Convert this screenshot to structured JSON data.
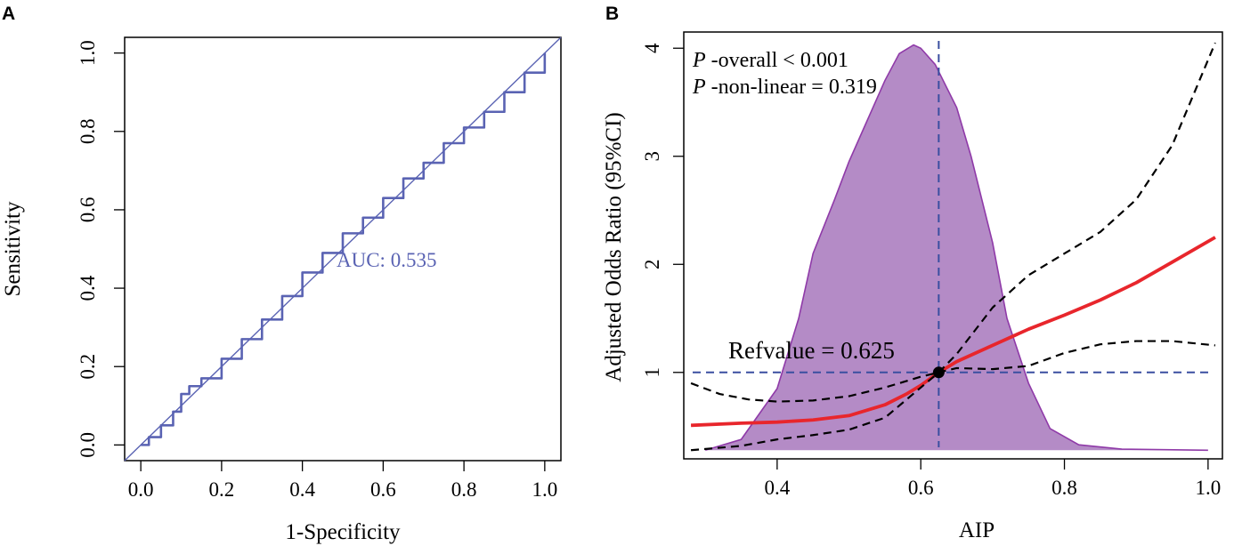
{
  "chart_data": [
    {
      "panel_label": "A",
      "type": "line",
      "xlabel": "1-Specificity",
      "ylabel": "Sensitivity",
      "xlim": [
        -0.04,
        1.04
      ],
      "ylim": [
        -0.04,
        1.04
      ],
      "xticks": [
        "0.0",
        "0.2",
        "0.4",
        "0.6",
        "0.8",
        "1.0"
      ],
      "yticks": [
        "0.0",
        "0.2",
        "0.4",
        "0.6",
        "0.8",
        "1.0"
      ],
      "annotation": "AUC: 0.535",
      "series": [
        {
          "name": "ROC",
          "x": [
            0.0,
            0.02,
            0.05,
            0.08,
            0.1,
            0.12,
            0.15,
            0.2,
            0.25,
            0.3,
            0.35,
            0.4,
            0.45,
            0.5,
            0.55,
            0.6,
            0.65,
            0.7,
            0.75,
            0.8,
            0.85,
            0.9,
            0.95,
            1.0
          ],
          "y": [
            0.0,
            0.02,
            0.05,
            0.085,
            0.13,
            0.15,
            0.17,
            0.22,
            0.27,
            0.32,
            0.38,
            0.44,
            0.49,
            0.54,
            0.58,
            0.63,
            0.68,
            0.72,
            0.77,
            0.81,
            0.85,
            0.9,
            0.95,
            1.0
          ]
        },
        {
          "name": "Reference",
          "x": [
            -0.04,
            1.04
          ],
          "y": [
            -0.04,
            1.04
          ]
        }
      ]
    },
    {
      "panel_label": "B",
      "type": "line",
      "xlabel": "AIP",
      "ylabel": "Adjusted Odds Ratio (95%CI)",
      "xlim": [
        0.27,
        1.02
      ],
      "ylim": [
        0.2,
        4.15
      ],
      "xticks": [
        "0.4",
        "0.6",
        "0.8",
        "1.0"
      ],
      "yticks": [
        "1",
        "2",
        "3",
        "4"
      ],
      "annotations": [
        {
          "italic": "P",
          "text": " -overall < 0.001"
        },
        {
          "italic": "P",
          "text": " -non-linear = 0.319"
        },
        {
          "italic": "",
          "text": "Refvalue = 0.625"
        }
      ],
      "reference": {
        "x": 0.625,
        "y": 1
      },
      "density": {
        "x": [
          0.3,
          0.35,
          0.4,
          0.43,
          0.45,
          0.48,
          0.5,
          0.52,
          0.55,
          0.57,
          0.59,
          0.6,
          0.62,
          0.65,
          0.67,
          0.7,
          0.72,
          0.75,
          0.78,
          0.82,
          0.88,
          1.0
        ],
        "y": [
          0.28,
          0.38,
          0.85,
          1.5,
          2.1,
          2.6,
          2.95,
          3.25,
          3.7,
          3.95,
          4.03,
          4.0,
          3.85,
          3.45,
          3.0,
          2.2,
          1.5,
          0.9,
          0.48,
          0.33,
          0.29,
          0.28
        ]
      },
      "series": [
        {
          "name": "OR",
          "color": "#e8262c",
          "x": [
            0.28,
            0.35,
            0.4,
            0.45,
            0.5,
            0.55,
            0.58,
            0.6,
            0.625,
            0.65,
            0.7,
            0.75,
            0.8,
            0.85,
            0.9,
            0.95,
            1.01
          ],
          "y": [
            0.51,
            0.53,
            0.54,
            0.56,
            0.6,
            0.7,
            0.8,
            0.88,
            1.0,
            1.1,
            1.25,
            1.4,
            1.53,
            1.67,
            1.83,
            2.02,
            2.25
          ]
        },
        {
          "name": "Upper 95% CI",
          "color": "#000000",
          "x": [
            0.28,
            0.32,
            0.36,
            0.4,
            0.45,
            0.5,
            0.55,
            0.6,
            0.625,
            0.65,
            0.7,
            0.75,
            0.8,
            0.85,
            0.9,
            0.95,
            1.01
          ],
          "y": [
            0.9,
            0.8,
            0.75,
            0.73,
            0.74,
            0.78,
            0.86,
            0.96,
            1.0,
            1.17,
            1.6,
            1.9,
            2.1,
            2.3,
            2.6,
            3.1,
            4.05
          ]
        },
        {
          "name": "Lower 95% CI",
          "color": "#000000",
          "x": [
            0.28,
            0.35,
            0.4,
            0.45,
            0.5,
            0.55,
            0.6,
            0.625,
            0.65,
            0.7,
            0.75,
            0.8,
            0.85,
            0.9,
            0.95,
            1.01
          ],
          "y": [
            0.28,
            0.32,
            0.38,
            0.42,
            0.47,
            0.58,
            0.86,
            1.0,
            1.04,
            1.03,
            1.06,
            1.18,
            1.26,
            1.29,
            1.29,
            1.25
          ]
        }
      ],
      "colors": {
        "density_fill": "#b48bc6",
        "density_stroke": "#8f3aa8",
        "reference_line": "#3a4fa0"
      }
    }
  ],
  "colors": {
    "roc_line": "#5a63b3",
    "auc_text": "#5a63b3",
    "axis": "#000000"
  }
}
